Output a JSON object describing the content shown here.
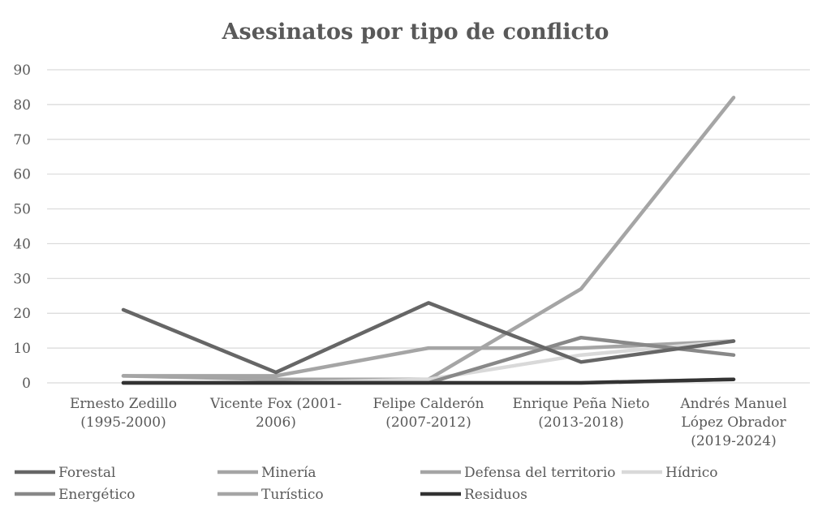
{
  "chart_data": {
    "type": "line",
    "title": "Asesinatos por tipo de conflicto",
    "xlabel": "",
    "ylabel": "",
    "ylim": [
      0,
      90
    ],
    "yticks": [
      0,
      10,
      20,
      30,
      40,
      50,
      60,
      70,
      80,
      90
    ],
    "grid": true,
    "legend_position": "bottom",
    "categories": [
      [
        "Ernesto Zedillo",
        "(1995-2000)"
      ],
      [
        "Vicente Fox (2001-",
        "2006)"
      ],
      [
        "Felipe Calderón",
        "(2007-2012)"
      ],
      [
        "Enrique Peña Nieto",
        "(2013-2018)"
      ],
      [
        "Andrés Manuel",
        "López Obrador",
        "(2019-2024)"
      ]
    ],
    "series": [
      {
        "name": "Forestal",
        "color": "#666666",
        "values": [
          21,
          3,
          23,
          6,
          12
        ]
      },
      {
        "name": "Minería",
        "color": "#a5a5a5",
        "values": [
          2,
          2,
          10,
          10,
          12
        ]
      },
      {
        "name": "Defensa del territorio",
        "color": "#a5a5a5",
        "values": [
          2,
          1,
          1,
          27,
          82
        ]
      },
      {
        "name": "Hídrico",
        "color": "#d9d9d9",
        "values": [
          0,
          0,
          1,
          8,
          12
        ]
      },
      {
        "name": "Energético",
        "color": "#888888",
        "values": [
          0,
          0,
          0,
          13,
          8
        ]
      },
      {
        "name": "Turístico",
        "color": "#a5a5a5",
        "values": [
          0,
          0,
          0,
          0,
          1
        ]
      },
      {
        "name": "Residuos",
        "color": "#333333",
        "values": [
          0,
          0,
          0,
          0,
          1
        ]
      }
    ]
  }
}
